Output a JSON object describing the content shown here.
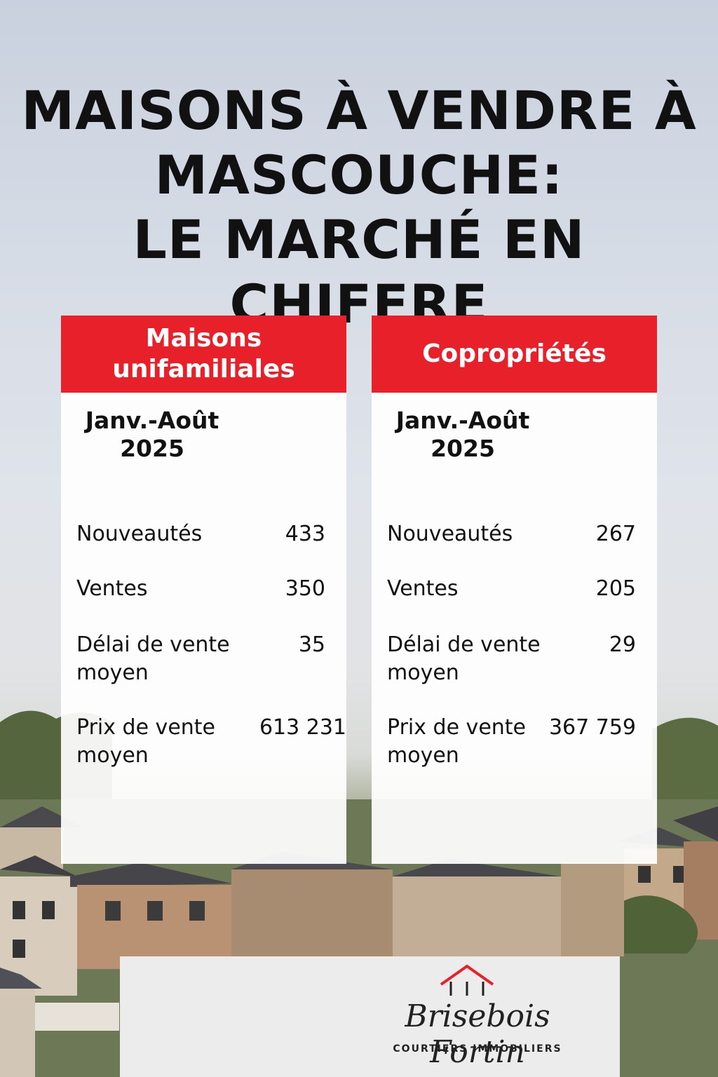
{
  "title": {
    "line1": "MAISONS À VENDRE À",
    "line2": "MASCOUCHE:",
    "line3": "LE MARCHÉ EN CHIFFRE"
  },
  "cards": [
    {
      "heading": "Maisons unifamiliales",
      "period": "Janv.-Août 2025",
      "rows": [
        {
          "label": "Nouveautés",
          "value": "433"
        },
        {
          "label": "Ventes",
          "value": "350"
        },
        {
          "label": "Délai de vente moyen",
          "value": "35"
        },
        {
          "label": "Prix de vente moyen",
          "value": "613 231"
        }
      ]
    },
    {
      "heading": "Copropriétés",
      "period": "Janv.-Août 2025",
      "rows": [
        {
          "label": "Nouveautés",
          "value": "267"
        },
        {
          "label": "Ventes",
          "value": "205"
        },
        {
          "label": "Délai de vente moyen",
          "value": "29"
        },
        {
          "label": "Prix de vente moyen",
          "value": "367 759"
        }
      ]
    }
  ],
  "logo": {
    "brand": "Brisebois Fortin",
    "tagline": "COURTIERS IMMOBILIERS",
    "roof_color": "#e8202a"
  },
  "colors": {
    "accent": "#e8202a"
  }
}
